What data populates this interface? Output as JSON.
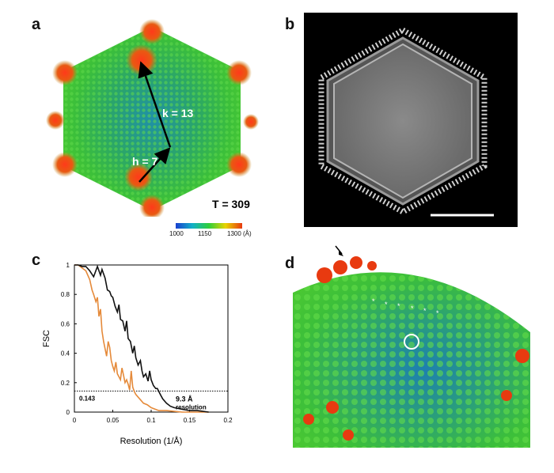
{
  "panels": {
    "a": {
      "letter": "a",
      "k_label": "k = 13",
      "h_label": "h = 7",
      "t_label": "T = 309",
      "colorbar": {
        "ticks": [
          "1000",
          "1150",
          "1300 (Å)"
        ],
        "colors": [
          "#1a3fd0",
          "#12b0c8",
          "#2fcf3a",
          "#e8d400",
          "#e83a10"
        ]
      }
    },
    "b": {
      "letter": "b"
    },
    "c": {
      "letter": "c"
    },
    "d": {
      "letter": "d"
    }
  },
  "chart_data": {
    "type": "line",
    "xlabel": "Resolution (1/Å)",
    "ylabel": "FSC",
    "xlim": [
      0,
      0.2
    ],
    "ylim": [
      0,
      1
    ],
    "xticks": [
      "0",
      "0.05",
      "0.1",
      "0.15",
      "0.2"
    ],
    "yticks": [
      "0",
      "0.2",
      "0.4",
      "0.6",
      "0.8",
      "1"
    ],
    "threshold": {
      "value": 0.143,
      "label": "0.143"
    },
    "annotation": {
      "line1": "9.3 Å",
      "line2": "resolution"
    },
    "series": [
      {
        "color": "#111111",
        "x": [
          0.0,
          0.005,
          0.01,
          0.015,
          0.02,
          0.025,
          0.03,
          0.034,
          0.036,
          0.04,
          0.043,
          0.046,
          0.048,
          0.05,
          0.053,
          0.056,
          0.058,
          0.06,
          0.063,
          0.066,
          0.068,
          0.07,
          0.073,
          0.076,
          0.078,
          0.08,
          0.083,
          0.086,
          0.088,
          0.09,
          0.093,
          0.096,
          0.098,
          0.1,
          0.103,
          0.106,
          0.108,
          0.11,
          0.112,
          0.115,
          0.12,
          0.125,
          0.13,
          0.14,
          0.15,
          0.16,
          0.175
        ],
        "y": [
          1.0,
          1.0,
          0.99,
          0.99,
          0.96,
          0.92,
          0.99,
          0.93,
          0.97,
          0.91,
          0.83,
          0.82,
          0.79,
          0.78,
          0.72,
          0.68,
          0.73,
          0.63,
          0.62,
          0.55,
          0.62,
          0.5,
          0.48,
          0.4,
          0.45,
          0.37,
          0.32,
          0.35,
          0.28,
          0.24,
          0.26,
          0.21,
          0.28,
          0.22,
          0.18,
          0.16,
          0.16,
          0.14,
          0.12,
          0.09,
          0.06,
          0.04,
          0.03,
          0.02,
          0.01,
          0.01,
          0.0
        ]
      },
      {
        "color": "#e58a3a",
        "x": [
          0.0,
          0.005,
          0.01,
          0.015,
          0.02,
          0.023,
          0.025,
          0.028,
          0.03,
          0.032,
          0.034,
          0.036,
          0.038,
          0.04,
          0.042,
          0.044,
          0.046,
          0.048,
          0.05,
          0.052,
          0.054,
          0.056,
          0.058,
          0.06,
          0.062,
          0.064,
          0.066,
          0.068,
          0.07,
          0.072,
          0.074,
          0.076,
          0.078,
          0.08,
          0.085,
          0.09,
          0.095,
          0.1,
          0.11,
          0.12,
          0.14,
          0.16,
          0.175
        ],
        "y": [
          1.0,
          1.0,
          0.98,
          0.96,
          0.9,
          0.83,
          0.8,
          0.75,
          0.78,
          0.65,
          0.7,
          0.55,
          0.48,
          0.43,
          0.38,
          0.48,
          0.44,
          0.35,
          0.31,
          0.28,
          0.34,
          0.26,
          0.24,
          0.22,
          0.3,
          0.25,
          0.2,
          0.22,
          0.19,
          0.15,
          0.28,
          0.17,
          0.14,
          0.12,
          0.09,
          0.06,
          0.05,
          0.03,
          0.01,
          0.01,
          0.0,
          0.0,
          0.0
        ]
      }
    ]
  }
}
